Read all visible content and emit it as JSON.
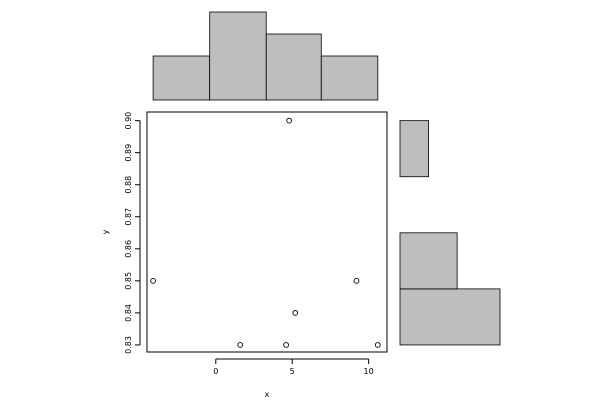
{
  "chart_data": [
    {
      "type": "scatter",
      "xlabel": "x",
      "ylabel": "y",
      "xlim": [
        -4.5,
        11.2
      ],
      "ylim": [
        0.8278,
        0.9027
      ],
      "x_ticks": [
        0,
        5,
        10
      ],
      "x_tick_labels": [
        "0",
        "5",
        "10"
      ],
      "y_ticks": [
        0.83,
        0.84,
        0.85,
        0.86,
        0.87,
        0.88,
        0.89,
        0.9
      ],
      "y_tick_labels": [
        "0.83",
        "0.84",
        "0.85",
        "0.86",
        "0.87",
        "0.88",
        "0.89",
        "0.90"
      ],
      "points": [
        {
          "x": -4.1,
          "y": 0.85
        },
        {
          "x": 1.6,
          "y": 0.83
        },
        {
          "x": 4.6,
          "y": 0.83
        },
        {
          "x": 4.8,
          "y": 0.9
        },
        {
          "x": 5.2,
          "y": 0.84
        },
        {
          "x": 9.2,
          "y": 0.85
        },
        {
          "x": 10.6,
          "y": 0.83
        }
      ],
      "grid": false
    },
    {
      "type": "bar",
      "orientation": "vertical",
      "description_of_axis": "marginal histogram of x",
      "bins": [
        {
          "from": -4.1,
          "to": -0.4,
          "count": 1
        },
        {
          "from": -0.4,
          "to": 3.3,
          "count": 2
        },
        {
          "from": 3.3,
          "to": 6.9,
          "count": 1.5
        },
        {
          "from": 6.9,
          "to": 10.6,
          "count": 1
        }
      ]
    },
    {
      "type": "bar",
      "orientation": "horizontal",
      "description_of_axis": "marginal histogram of y",
      "bins": [
        {
          "from": 0.83,
          "to": 0.8475,
          "count": 3.5
        },
        {
          "from": 0.8475,
          "to": 0.865,
          "count": 2
        },
        {
          "from": 0.865,
          "to": 0.8825,
          "count": 0
        },
        {
          "from": 0.8825,
          "to": 0.9,
          "count": 1
        }
      ]
    }
  ]
}
